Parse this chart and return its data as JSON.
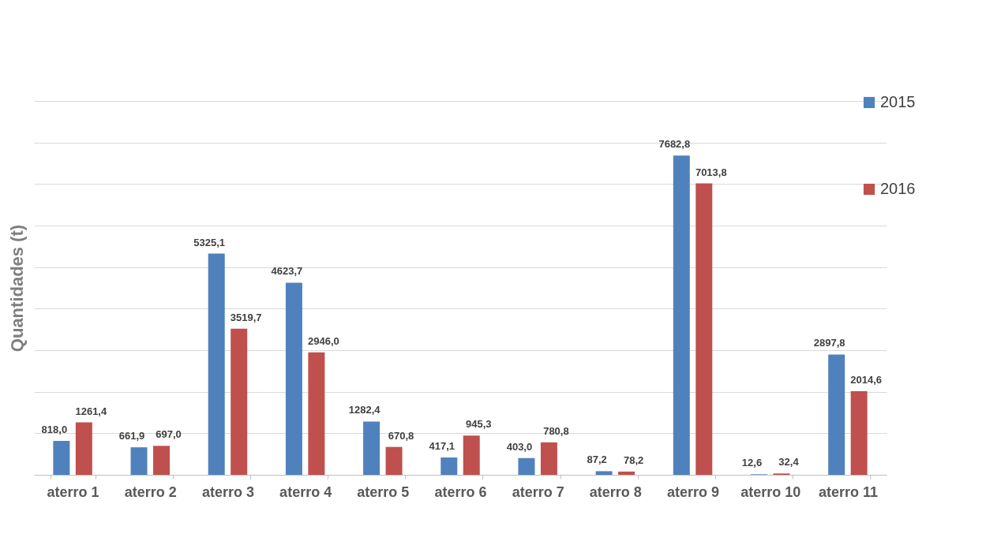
{
  "chart_data": {
    "type": "bar",
    "ylabel": "Quantidades (t)",
    "categories": [
      "aterro 1",
      "aterro 2",
      "aterro 3",
      "aterro 4",
      "aterro 5",
      "aterro 6",
      "aterro 7",
      "aterro 8",
      "aterro 9",
      "aterro 10",
      "aterro 11"
    ],
    "series": [
      {
        "name": "2015",
        "color": "#4f81bd",
        "values": [
          818.0,
          661.9,
          5325.1,
          4623.7,
          1282.4,
          417.1,
          403.0,
          87.2,
          7682.8,
          12.6,
          2897.8
        ],
        "value_labels": [
          "818,0",
          "661,9",
          "5325,1",
          "4623,7",
          "1282,4",
          "417,1",
          "403,0",
          "87,2",
          "7682,8",
          "12,6",
          "2897,8"
        ]
      },
      {
        "name": "2016",
        "color": "#c0504d",
        "values": [
          1261.4,
          697.0,
          3519.7,
          2946.0,
          670.8,
          945.3,
          780.8,
          78.2,
          7013.8,
          32.4,
          2014.6
        ],
        "value_labels": [
          "1261,4",
          "697,0",
          "3519,7",
          "2946,0",
          "670,8",
          "945,3",
          "780,8",
          "78,2",
          "7013,8",
          "32,4",
          "2014,6"
        ]
      }
    ],
    "ylim": [
      0,
      9000
    ],
    "yticks": [
      {
        "value": 0,
        "label": null
      },
      {
        "value": 1000,
        "label": null
      },
      {
        "value": 2000,
        "label": null
      },
      {
        "value": 3000,
        "label": null
      },
      {
        "value": 4000,
        "label": null
      },
      {
        "value": 5000,
        "label": null
      },
      {
        "value": 6000,
        "label": null
      },
      {
        "value": 7000,
        "label": null
      },
      {
        "value": 8000,
        "label": null
      },
      {
        "value": 9000,
        "label": null
      }
    ],
    "tick_labels": "x",
    "grid": "y",
    "legend": "top right"
  }
}
